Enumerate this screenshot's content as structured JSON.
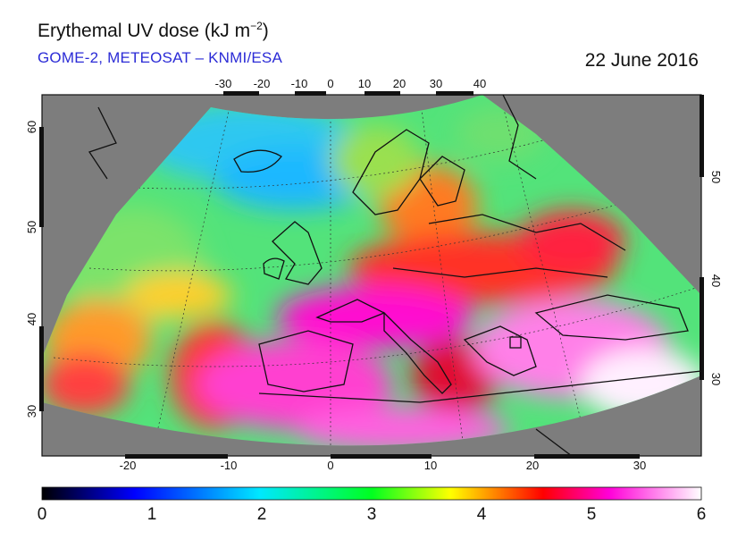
{
  "title": {
    "text": "Erythemal UV dose (kJ m",
    "sup": "−2",
    "close": ")"
  },
  "subtitle": "GOME-2, METEOSAT – KNMI/ESA",
  "date": "22 June 2016",
  "axes": {
    "top_ticks": [
      "-30",
      "-20",
      "-10",
      "0",
      "10",
      "20",
      "30",
      "40"
    ],
    "bottom_ticks": [
      "-20",
      "-10",
      "0",
      "10",
      "20",
      "30"
    ],
    "left_ticks": [
      "60",
      "50",
      "40",
      "30"
    ],
    "right_ticks": [
      "50",
      "40",
      "30"
    ]
  },
  "colorbar": {
    "labels": [
      "0",
      "1",
      "2",
      "3",
      "4",
      "5",
      "6"
    ],
    "stops": [
      "#000000",
      "#0000ff",
      "#00e8ff",
      "#00ff20",
      "#ffff00",
      "#ff0000",
      "#ff00d8",
      "#ffffff"
    ]
  },
  "colors": {
    "ocean_mask": "#7d7d7d",
    "subtitle": "#2b2bd6"
  }
}
